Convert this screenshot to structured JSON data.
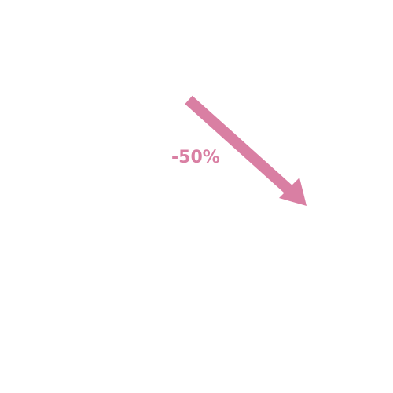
{
  "graphic": {
    "change_label": "-50%",
    "direction": "down",
    "arrow_icon": "arrow-down-right-icon",
    "color": "#d97fa3"
  }
}
